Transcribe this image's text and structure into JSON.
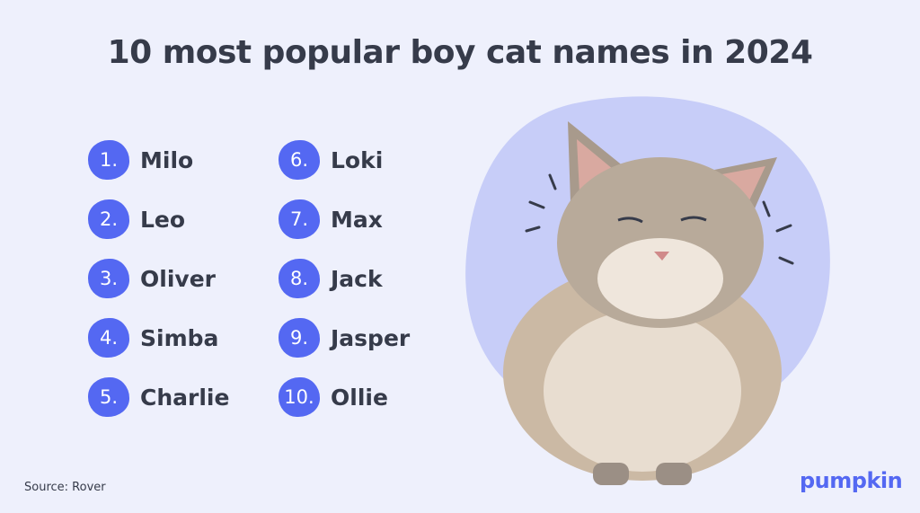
{
  "title": "10 most popular boy cat names in 2024",
  "names": [
    {
      "rank": "1.",
      "name": "Milo"
    },
    {
      "rank": "2.",
      "name": "Leo"
    },
    {
      "rank": "3.",
      "name": "Oliver"
    },
    {
      "rank": "4.",
      "name": "Simba"
    },
    {
      "rank": "5.",
      "name": "Charlie"
    },
    {
      "rank": "6.",
      "name": "Loki"
    },
    {
      "rank": "7.",
      "name": "Max"
    },
    {
      "rank": "8.",
      "name": "Jack"
    },
    {
      "rank": "9.",
      "name": "Jasper"
    },
    {
      "rank": "10.",
      "name": "Ollie"
    }
  ],
  "source": "Source: Rover",
  "logo": "pumpkin",
  "colors": {
    "background": "#eef0fc",
    "accent": "#5468f2",
    "text": "#363b4a",
    "blob": "#c7cdf8"
  }
}
